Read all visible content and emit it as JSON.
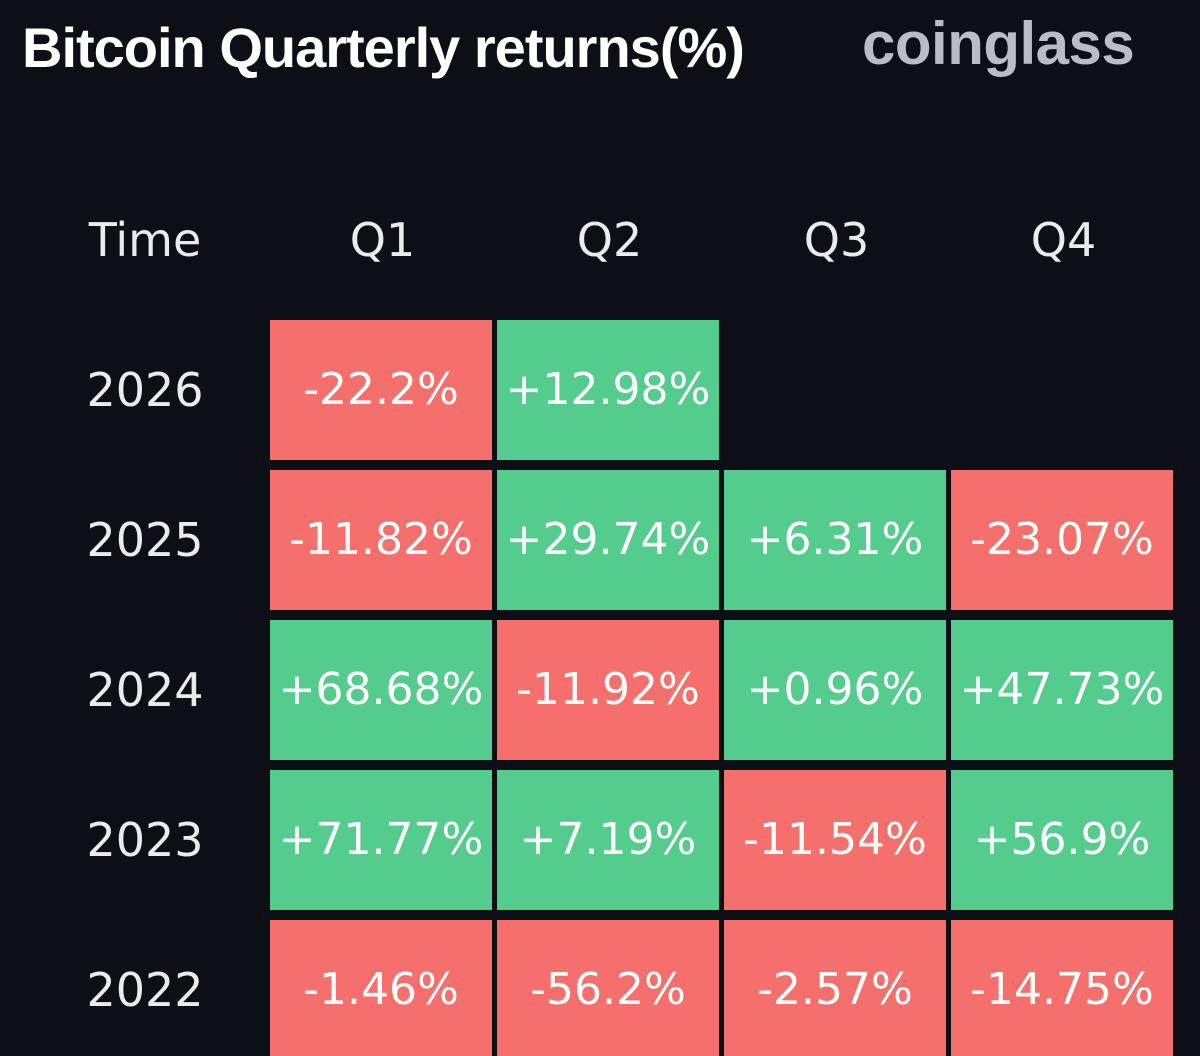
{
  "title": "Bitcoin Quarterly returns(%)",
  "brand": "coinglass",
  "colors": {
    "background": "#0d0f16",
    "positive": "#54cc8d",
    "negative": "#f56f6c",
    "brand": "#b9bec6"
  },
  "chart_data": {
    "type": "heatmap",
    "title": "Bitcoin Quarterly returns(%)",
    "row_header": "Time",
    "columns": [
      "Q1",
      "Q2",
      "Q3",
      "Q4"
    ],
    "rows": [
      {
        "year": "2026",
        "values": [
          "-22.2%",
          "+12.98%",
          null,
          null
        ]
      },
      {
        "year": "2025",
        "values": [
          "-11.82%",
          "+29.74%",
          "+6.31%",
          "-23.07%"
        ]
      },
      {
        "year": "2024",
        "values": [
          "+68.68%",
          "-11.92%",
          "+0.96%",
          "+47.73%"
        ]
      },
      {
        "year": "2023",
        "values": [
          "+71.77%",
          "+7.19%",
          "-11.54%",
          "+56.9%"
        ]
      },
      {
        "year": "2022",
        "values": [
          "-1.46%",
          "-56.2%",
          "-2.57%",
          "-14.75%"
        ]
      }
    ]
  }
}
